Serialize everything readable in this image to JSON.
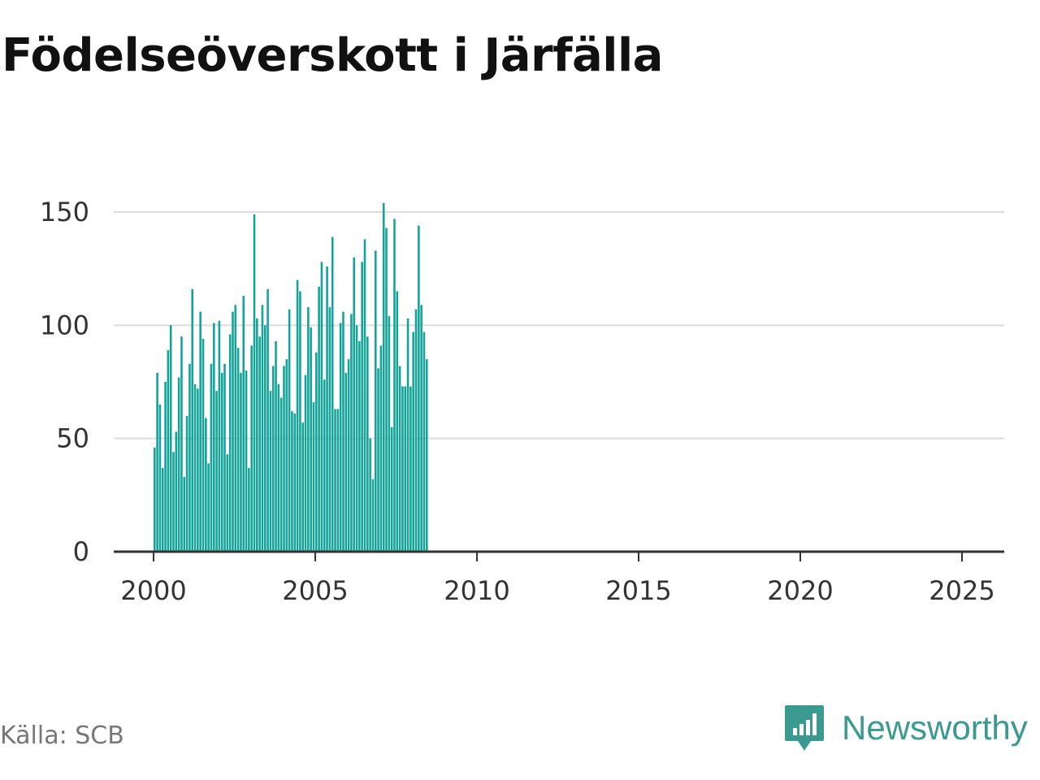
{
  "title": "Födelseöverskott i Järfälla",
  "source": "Källa: SCB",
  "brand": {
    "name": "Newsworthy",
    "icon": "newsworthy-logo-icon",
    "color": "#3a9a90"
  },
  "colors": {
    "bar": "#14a398",
    "grid": "#dddddd",
    "axis": "#333333"
  },
  "chart_data": {
    "type": "bar",
    "title": "Födelseöverskott i Järfälla",
    "xlabel": "",
    "ylabel": "",
    "x_axis": {
      "type": "date",
      "min": 2000,
      "max": 2025.5,
      "ticks": [
        2000,
        2005,
        2010,
        2015,
        2020,
        2025
      ]
    },
    "y_axis": {
      "min": 0,
      "max": 160,
      "ticks": [
        0,
        50,
        100,
        150
      ]
    },
    "grid": true,
    "frequency": "monthly",
    "start": "2000-01",
    "values": [
      46,
      79,
      65,
      37,
      75,
      89,
      100,
      44,
      53,
      77,
      95,
      33,
      60,
      83,
      116,
      74,
      72,
      106,
      94,
      59,
      39,
      83,
      101,
      71,
      102,
      79,
      83,
      43,
      96,
      106,
      109,
      90,
      79,
      113,
      80,
      37,
      91,
      149,
      103,
      95,
      109,
      100,
      116,
      71,
      82,
      93,
      74,
      68,
      82,
      85,
      107,
      62,
      61,
      120,
      115,
      57,
      78,
      108,
      99,
      66,
      88,
      117,
      128,
      76,
      126,
      108,
      139,
      63,
      63,
      101,
      106,
      79,
      85,
      105,
      130,
      100,
      93,
      128,
      138,
      95,
      50,
      32,
      133,
      81,
      91,
      154,
      143,
      104,
      55,
      147,
      115,
      82,
      73,
      73,
      103,
      73,
      97,
      107,
      144,
      109,
      97,
      85
    ]
  }
}
